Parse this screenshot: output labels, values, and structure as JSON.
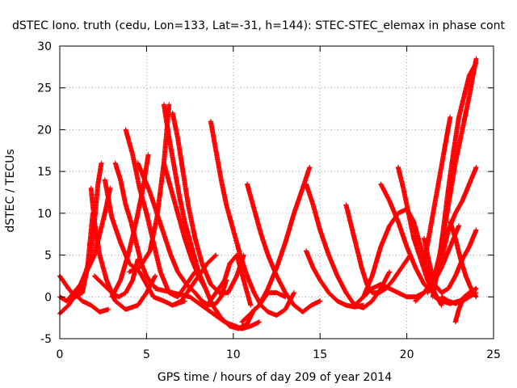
{
  "chart_data": {
    "type": "scatter",
    "title": "dSTEC Iono. truth (cedu, Lon=133, Lat=-31, h=144): STEC-STEC_elemax in phase cont",
    "xlabel": "GPS time / hours of day 209 of year 2014",
    "ylabel": "dSTEC  / TECUs",
    "xlim": [
      0,
      25
    ],
    "ylim": [
      -5,
      30
    ],
    "xticks": [
      0,
      5,
      10,
      15,
      20,
      25
    ],
    "yticks": [
      -5,
      0,
      5,
      10,
      15,
      20,
      25,
      30
    ],
    "grid": true,
    "marker": "plus",
    "color": "#ff0000",
    "series": [
      {
        "x": [
          0.0,
          0.5,
          1.0,
          1.5,
          1.8,
          2.0,
          2.2,
          2.4
        ],
        "y": [
          -2.0,
          -1.0,
          0.5,
          3.0,
          5.0,
          9.0,
          13.5,
          16.0
        ]
      },
      {
        "x": [
          0.0,
          0.5,
          0.9,
          1.3,
          1.6,
          1.9
        ],
        "y": [
          2.5,
          1.0,
          0.0,
          0.5,
          3.5,
          10.0
        ]
      },
      {
        "x": [
          0.0,
          0.4,
          1.2,
          2.0,
          2.6,
          2.9
        ],
        "y": [
          0.0,
          -0.5,
          1.5,
          5.0,
          10.0,
          13.0
        ]
      },
      {
        "x": [
          1.8,
          2.0,
          2.3,
          2.7,
          3.2,
          3.8,
          4.5,
          5.0,
          5.5
        ],
        "y": [
          13.0,
          9.0,
          5.0,
          2.0,
          -0.5,
          -1.5,
          -1.0,
          0.5,
          2.5
        ]
      },
      {
        "x": [
          0.8,
          1.3,
          1.8,
          2.3,
          2.8
        ],
        "y": [
          0.5,
          -0.5,
          -1.0,
          -1.8,
          -1.5
        ]
      },
      {
        "x": [
          2.6,
          3.0,
          3.5,
          4.0,
          4.6,
          5.0,
          5.4,
          6.0,
          6.5,
          7.2
        ],
        "y": [
          14.0,
          9.5,
          6.5,
          4.0,
          3.0,
          1.5,
          0.0,
          -0.5,
          -1.0,
          -0.5
        ]
      },
      {
        "x": [
          3.2,
          3.5,
          3.8,
          4.1,
          4.4,
          4.7,
          5.0,
          5.3,
          5.6
        ],
        "y": [
          16.0,
          14.0,
          11.0,
          9.0,
          6.5,
          4.0,
          2.5,
          1.5,
          1.0
        ]
      },
      {
        "x": [
          2.0,
          2.5,
          3.0,
          3.4,
          3.8,
          4.2,
          4.5
        ],
        "y": [
          2.5,
          1.5,
          0.5,
          0.0,
          0.5,
          2.0,
          4.5
        ]
      },
      {
        "x": [
          3.8,
          4.2,
          4.6,
          5.0,
          5.4,
          5.8,
          6.3,
          6.8,
          7.3,
          7.8
        ],
        "y": [
          20.0,
          17.0,
          13.0,
          10.0,
          6.5,
          3.0,
          0.5,
          0.0,
          1.5,
          3.0
        ]
      },
      {
        "x": [
          3.0,
          3.5,
          4.0,
          4.4,
          4.8,
          5.1
        ],
        "y": [
          0.0,
          2.0,
          5.5,
          9.0,
          13.0,
          17.0
        ]
      },
      {
        "x": [
          4.5,
          4.8,
          5.2,
          5.6,
          6.0,
          6.4,
          6.8,
          7.3,
          7.8,
          8.2,
          8.6,
          9.0,
          9.3,
          9.6
        ],
        "y": [
          16.0,
          14.5,
          12.5,
          10.0,
          7.5,
          5.0,
          3.0,
          1.5,
          0.5,
          -0.5,
          -1.0,
          -0.8,
          0.0,
          2.0
        ]
      },
      {
        "x": [
          4.0,
          4.6,
          5.2,
          5.6,
          6.0,
          6.3
        ],
        "y": [
          3.0,
          3.5,
          5.5,
          9.5,
          16.0,
          23.0
        ]
      },
      {
        "x": [
          6.0,
          6.3,
          6.6,
          6.9,
          7.2,
          7.6,
          8.0,
          8.4,
          8.8,
          9.3,
          9.8,
          10.3,
          10.8,
          11.2
        ],
        "y": [
          23.0,
          19.0,
          15.5,
          12.0,
          9.0,
          6.0,
          3.0,
          1.0,
          -1.0,
          -2.5,
          -3.5,
          -3.8,
          -3.2,
          -1.5
        ]
      },
      {
        "x": [
          6.5,
          6.8,
          7.1,
          7.4,
          7.8,
          8.2,
          8.7,
          9.2,
          9.7,
          10.2,
          10.6
        ],
        "y": [
          22.0,
          19.0,
          15.0,
          11.0,
          7.0,
          4.0,
          1.5,
          0.5,
          0.5,
          2.5,
          5.0
        ]
      },
      {
        "x": [
          6.0,
          6.4,
          6.8,
          7.2,
          7.6,
          8.0,
          8.4
        ],
        "y": [
          16.0,
          13.0,
          10.0,
          7.0,
          4.5,
          2.5,
          1.0
        ]
      },
      {
        "x": [
          8.7,
          9.0,
          9.3,
          9.6,
          10.0,
          10.4,
          10.8,
          11.2,
          11.6,
          12.0,
          12.5,
          13.0,
          13.5
        ],
        "y": [
          21.0,
          17.5,
          14.0,
          11.0,
          8.0,
          5.0,
          2.5,
          0.5,
          -1.0,
          -1.8,
          -2.2,
          -1.5,
          0.5
        ]
      },
      {
        "x": [
          6.5,
          7.0,
          7.5,
          8.0,
          8.5,
          9.0
        ],
        "y": [
          -1.0,
          -0.5,
          1.0,
          2.5,
          4.0,
          5.0
        ]
      },
      {
        "x": [
          5.5,
          6.5,
          7.5,
          8.5,
          9.5,
          10.5,
          11.0,
          11.5
        ],
        "y": [
          1.0,
          0.5,
          0.0,
          -1.5,
          -3.0,
          -3.8,
          -3.5,
          -3.0
        ]
      },
      {
        "x": [
          8.5,
          9.0,
          9.5,
          9.8,
          10.2,
          10.6,
          11.0
        ],
        "y": [
          -1.0,
          0.5,
          2.0,
          4.0,
          5.0,
          2.0,
          -1.0
        ]
      },
      {
        "x": [
          10.8,
          11.2,
          11.6,
          12.0,
          12.5,
          13.0,
          13.5,
          14.0,
          14.5,
          15.0
        ],
        "y": [
          13.5,
          10.5,
          7.5,
          5.0,
          2.5,
          0.5,
          -1.0,
          -1.8,
          -1.0,
          -0.5
        ]
      },
      {
        "x": [
          10.5,
          11.0,
          11.5,
          12.0,
          12.5,
          13.0
        ],
        "y": [
          -3.0,
          -2.0,
          -1.0,
          0.5,
          0.5,
          0.0
        ]
      },
      {
        "x": [
          11.0,
          11.5,
          12.0,
          12.5,
          13.0,
          13.5,
          14.0,
          14.4
        ],
        "y": [
          -2.0,
          -1.0,
          1.0,
          3.5,
          6.5,
          10.0,
          13.0,
          15.5
        ]
      },
      {
        "x": [
          14.2,
          14.6,
          15.0,
          15.5,
          16.0,
          16.5,
          17.0,
          17.5,
          18.0,
          18.5,
          19.0
        ],
        "y": [
          13.5,
          11.0,
          8.0,
          5.0,
          2.5,
          0.5,
          -1.0,
          -1.3,
          -0.5,
          1.0,
          3.0
        ]
      },
      {
        "x": [
          14.2,
          14.6,
          15.0,
          15.5,
          16.0,
          16.5,
          17.0,
          17.5
        ],
        "y": [
          5.5,
          3.5,
          2.0,
          0.5,
          -0.5,
          -1.0,
          -1.2,
          -1.0
        ]
      },
      {
        "x": [
          16.5,
          16.8,
          17.1,
          17.4,
          17.7,
          18.0,
          18.4,
          18.8,
          19.2,
          19.7,
          20.2
        ],
        "y": [
          11.0,
          8.5,
          6.0,
          3.5,
          1.5,
          0.5,
          0.5,
          1.0,
          2.0,
          3.5,
          5.0
        ]
      },
      {
        "x": [
          17.0,
          17.5,
          18.0,
          18.5,
          19.0,
          19.5,
          20.0,
          20.5,
          21.0,
          21.5,
          22.0,
          22.5,
          23.0
        ],
        "y": [
          -1.0,
          0.0,
          1.0,
          1.5,
          1.0,
          0.5,
          0.0,
          0.0,
          0.5,
          1.5,
          3.5,
          6.0,
          8.5
        ]
      },
      {
        "x": [
          17.5,
          18.0,
          18.5,
          19.0,
          19.5,
          20.0,
          20.4,
          20.8,
          21.2,
          21.6,
          22.0
        ],
        "y": [
          0.0,
          2.5,
          6.0,
          8.5,
          10.0,
          10.5,
          9.0,
          6.0,
          3.0,
          0.5,
          -1.0
        ]
      },
      {
        "x": [
          18.5,
          19.0,
          19.5,
          20.0,
          20.5,
          21.0,
          21.5
        ],
        "y": [
          13.5,
          11.5,
          9.0,
          6.0,
          3.5,
          1.5,
          0.5
        ]
      },
      {
        "x": [
          19.5,
          19.8,
          20.1,
          20.4,
          20.8,
          21.2,
          21.6,
          22.0,
          22.5,
          23.0,
          23.5,
          24.0
        ],
        "y": [
          15.5,
          13.0,
          10.0,
          7.0,
          4.5,
          2.0,
          0.0,
          -0.5,
          -0.8,
          -0.5,
          0.0,
          1.0
        ]
      },
      {
        "x": [
          21.0,
          21.3,
          21.6,
          22.0,
          22.4,
          22.8,
          23.2,
          23.6,
          24.0
        ],
        "y": [
          7.0,
          4.0,
          1.5,
          0.5,
          1.0,
          2.5,
          4.5,
          6.0,
          8.0
        ]
      },
      {
        "x": [
          20.5,
          21.0,
          21.5,
          22.0,
          22.4,
          22.8,
          23.2,
          23.6,
          24.0
        ],
        "y": [
          -0.5,
          0.5,
          2.0,
          4.5,
          8.0,
          10.0,
          11.5,
          13.5,
          15.5
        ]
      },
      {
        "x": [
          21.2,
          21.6,
          22.0,
          22.4,
          22.8,
          23.2,
          23.6,
          24.0
        ],
        "y": [
          0.5,
          2.5,
          6.0,
          11.0,
          16.0,
          20.0,
          24.0,
          28.5
        ]
      },
      {
        "x": [
          21.5,
          21.8,
          22.1,
          22.4,
          22.7,
          23.0,
          23.3,
          23.6,
          24.0
        ],
        "y": [
          0.0,
          3.5,
          8.0,
          13.0,
          17.5,
          21.5,
          24.0,
          26.5,
          28.0
        ]
      },
      {
        "x": [
          21.0,
          21.3,
          21.6,
          21.9,
          22.2,
          22.5
        ],
        "y": [
          4.0,
          7.5,
          11.0,
          14.5,
          18.0,
          21.5
        ]
      },
      {
        "x": [
          22.0,
          22.4,
          22.8,
          23.2,
          23.6,
          24.0
        ],
        "y": [
          0.0,
          -0.5,
          -0.8,
          -0.5,
          0.0,
          0.5
        ]
      },
      {
        "x": [
          22.8,
          23.0,
          23.3,
          23.6,
          24.0
        ],
        "y": [
          -3.0,
          -1.5,
          0.0,
          0.5,
          1.0
        ]
      },
      {
        "x": [
          22.5,
          22.8,
          23.1,
          23.4,
          23.7,
          24.0
        ],
        "y": [
          9.0,
          7.0,
          4.5,
          2.5,
          1.0,
          0.0
        ]
      }
    ]
  }
}
